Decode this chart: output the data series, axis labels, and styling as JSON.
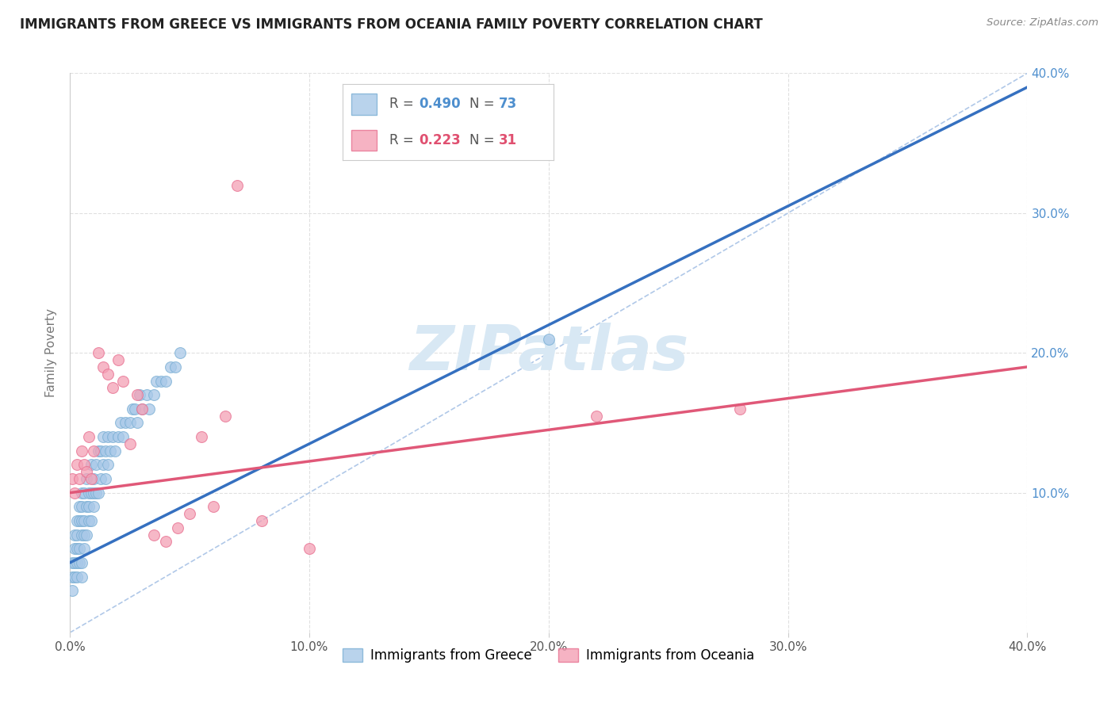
{
  "title": "IMMIGRANTS FROM GREECE VS IMMIGRANTS FROM OCEANIA FAMILY POVERTY CORRELATION CHART",
  "source": "Source: ZipAtlas.com",
  "ylabel": "Family Poverty",
  "xlim": [
    0.0,
    0.4
  ],
  "ylim": [
    0.0,
    0.4
  ],
  "xticks": [
    0.0,
    0.1,
    0.2,
    0.3,
    0.4
  ],
  "yticks": [
    0.0,
    0.1,
    0.2,
    0.3,
    0.4
  ],
  "series1_label": "Immigrants from Greece",
  "series2_label": "Immigrants from Oceania",
  "series1_color": "#a8c8e8",
  "series2_color": "#f4a0b5",
  "series1_edge": "#7aafd4",
  "series2_edge": "#e87090",
  "legend_R1_color": "#4e8fce",
  "legend_R2_color": "#e05070",
  "trend1_color": "#3570c0",
  "trend2_color": "#e05878",
  "ref_line_color": "#b0c8e8",
  "watermark_color": "#d8e8f4",
  "background_color": "#ffffff",
  "grid_color": "#e0e0e0",
  "yaxis_color": "#4e8fce",
  "series1_x": [
    0.001,
    0.001,
    0.001,
    0.002,
    0.002,
    0.002,
    0.002,
    0.003,
    0.003,
    0.003,
    0.003,
    0.003,
    0.004,
    0.004,
    0.004,
    0.004,
    0.005,
    0.005,
    0.005,
    0.005,
    0.005,
    0.005,
    0.006,
    0.006,
    0.006,
    0.006,
    0.007,
    0.007,
    0.007,
    0.008,
    0.008,
    0.008,
    0.009,
    0.009,
    0.009,
    0.01,
    0.01,
    0.01,
    0.011,
    0.011,
    0.012,
    0.012,
    0.013,
    0.013,
    0.014,
    0.014,
    0.015,
    0.015,
    0.016,
    0.016,
    0.017,
    0.018,
    0.019,
    0.02,
    0.021,
    0.022,
    0.023,
    0.025,
    0.026,
    0.027,
    0.028,
    0.029,
    0.03,
    0.032,
    0.033,
    0.035,
    0.036,
    0.038,
    0.04,
    0.042,
    0.044,
    0.046,
    0.2
  ],
  "series1_y": [
    0.03,
    0.05,
    0.04,
    0.06,
    0.04,
    0.05,
    0.07,
    0.05,
    0.04,
    0.06,
    0.07,
    0.08,
    0.05,
    0.06,
    0.08,
    0.09,
    0.04,
    0.05,
    0.07,
    0.08,
    0.09,
    0.1,
    0.06,
    0.07,
    0.08,
    0.1,
    0.07,
    0.09,
    0.11,
    0.08,
    0.09,
    0.1,
    0.08,
    0.1,
    0.12,
    0.09,
    0.1,
    0.11,
    0.1,
    0.12,
    0.1,
    0.13,
    0.11,
    0.13,
    0.12,
    0.14,
    0.11,
    0.13,
    0.12,
    0.14,
    0.13,
    0.14,
    0.13,
    0.14,
    0.15,
    0.14,
    0.15,
    0.15,
    0.16,
    0.16,
    0.15,
    0.17,
    0.16,
    0.17,
    0.16,
    0.17,
    0.18,
    0.18,
    0.18,
    0.19,
    0.19,
    0.2,
    0.21
  ],
  "series2_x": [
    0.001,
    0.002,
    0.003,
    0.004,
    0.005,
    0.006,
    0.007,
    0.008,
    0.009,
    0.01,
    0.012,
    0.014,
    0.016,
    0.018,
    0.02,
    0.022,
    0.025,
    0.028,
    0.03,
    0.035,
    0.04,
    0.045,
    0.05,
    0.055,
    0.06,
    0.065,
    0.07,
    0.08,
    0.1,
    0.22,
    0.28
  ],
  "series2_y": [
    0.11,
    0.1,
    0.12,
    0.11,
    0.13,
    0.12,
    0.115,
    0.14,
    0.11,
    0.13,
    0.2,
    0.19,
    0.185,
    0.175,
    0.195,
    0.18,
    0.135,
    0.17,
    0.16,
    0.07,
    0.065,
    0.075,
    0.085,
    0.14,
    0.09,
    0.155,
    0.32,
    0.08,
    0.06,
    0.155,
    0.16
  ]
}
